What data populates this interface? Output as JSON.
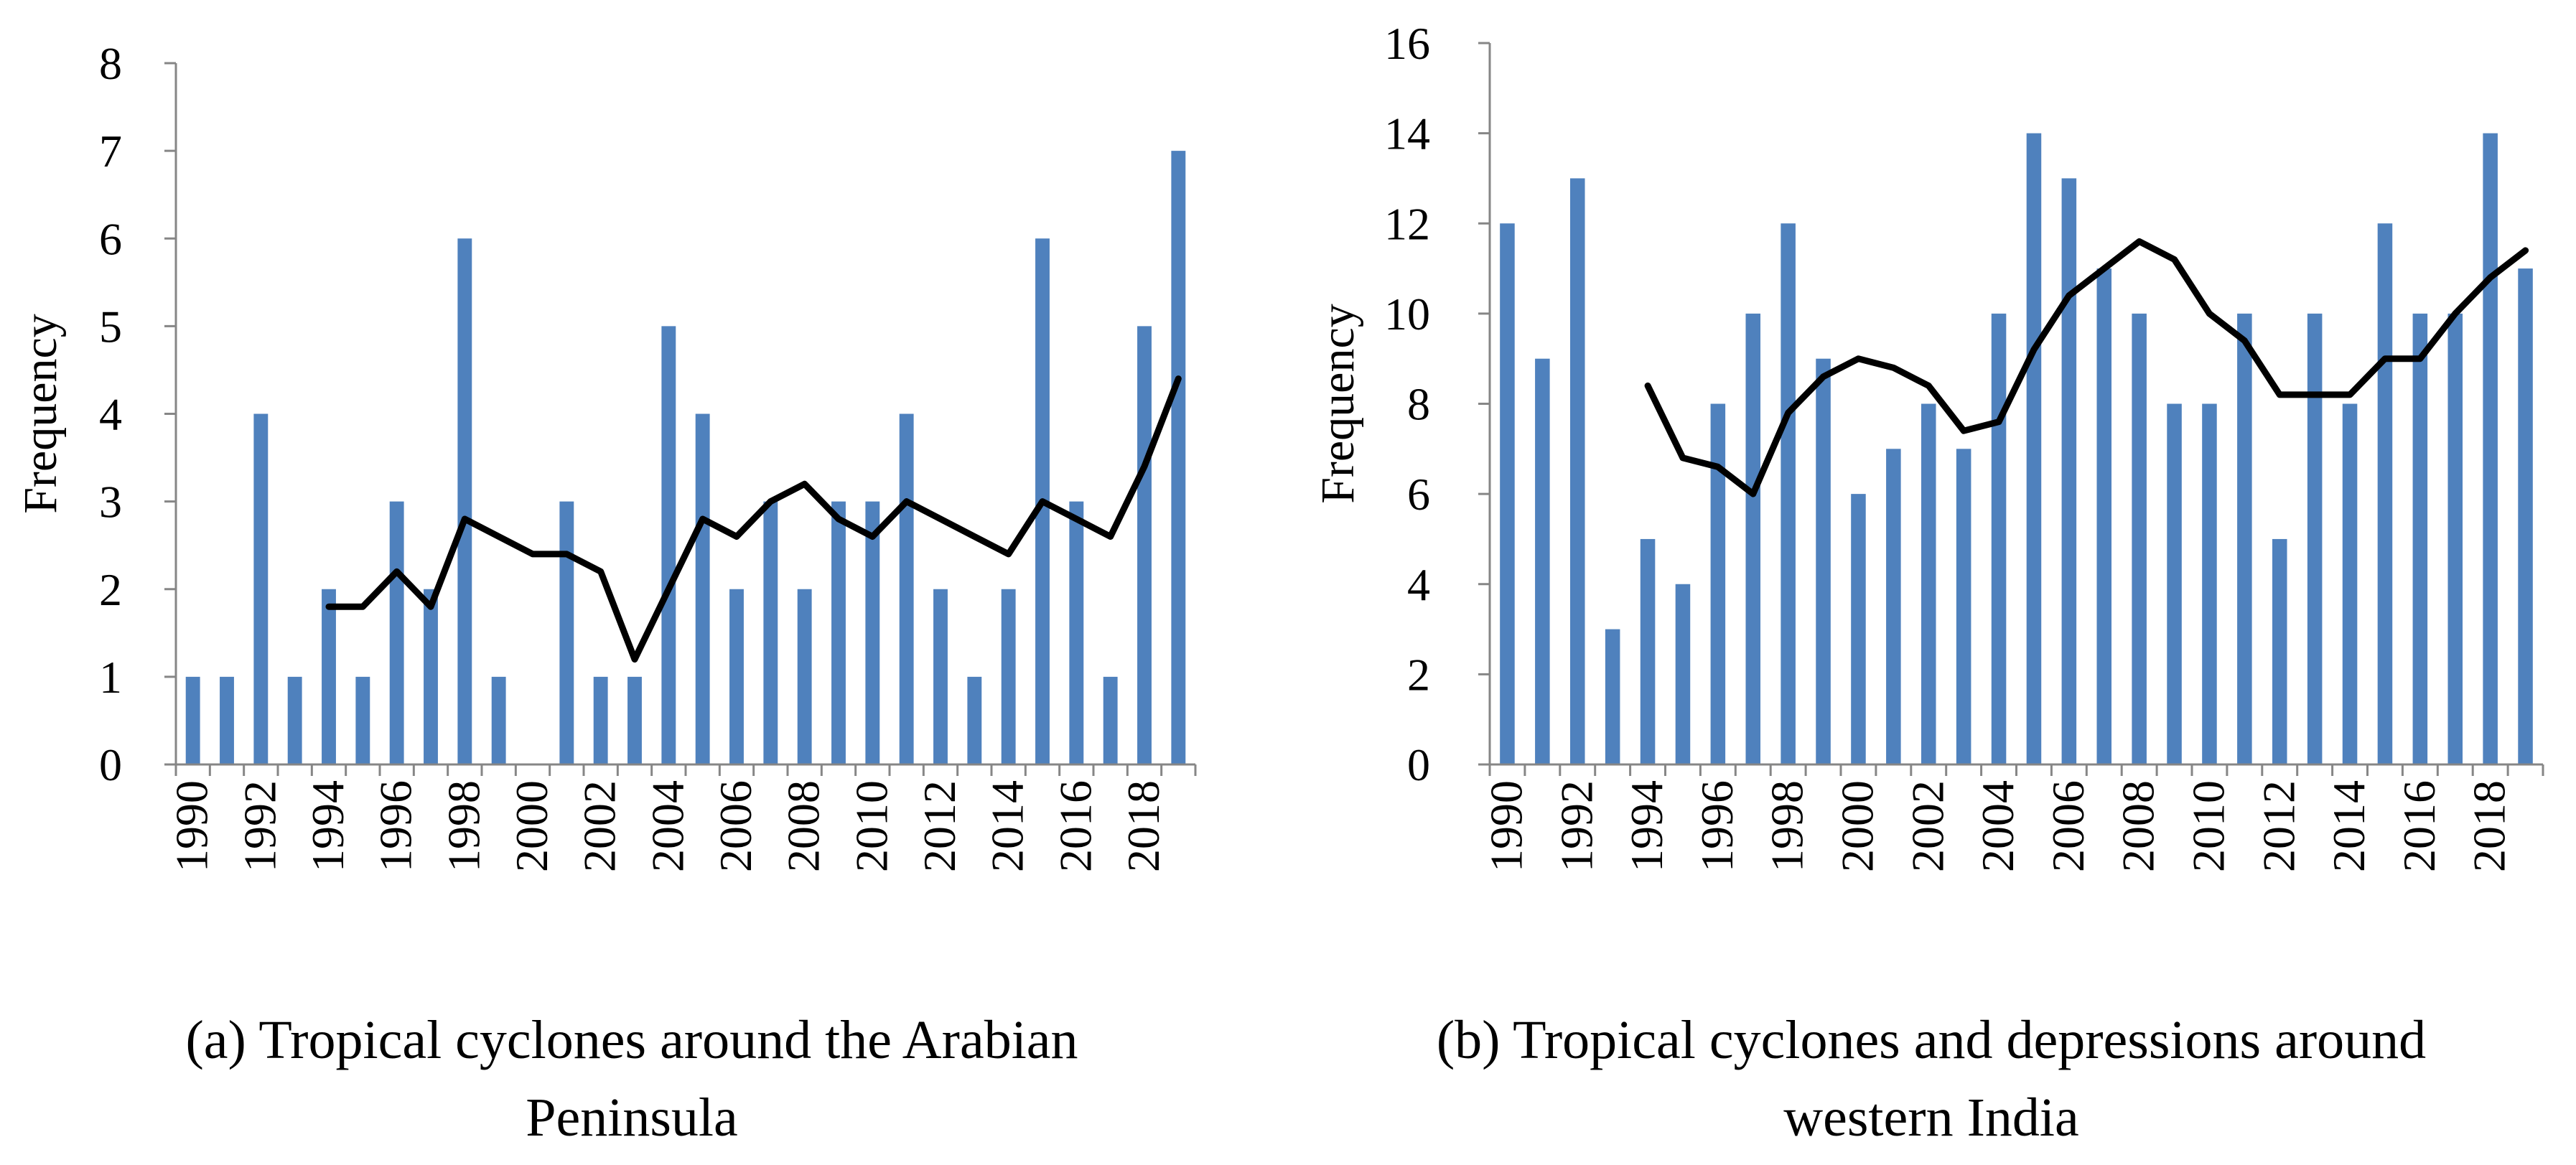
{
  "colors": {
    "bar": "#4f81bd",
    "line": "#000000",
    "axis": "#868686"
  },
  "chart_data": [
    {
      "type": "bar",
      "caption": "(a) Tropical cyclones around the Arabian Peninsula",
      "caption_lines": [
        "(a) Tropical cyclones around the Arabian",
        "Peninsula"
      ],
      "ylabel": "Frequency",
      "ylim": [
        0,
        8
      ],
      "yticks": [
        "0",
        "1",
        "2",
        "3",
        "4",
        "5",
        "6",
        "7",
        "8"
      ],
      "categories": [
        "1990",
        "1991",
        "1992",
        "1993",
        "1994",
        "1995",
        "1996",
        "1997",
        "1998",
        "1999",
        "2000",
        "2001",
        "2002",
        "2003",
        "2004",
        "2005",
        "2006",
        "2007",
        "2008",
        "2009",
        "2010",
        "2011",
        "2012",
        "2013",
        "2014",
        "2015",
        "2016",
        "2017",
        "2018",
        "2019"
      ],
      "xtick_labels": [
        "1990",
        "1992",
        "1994",
        "1996",
        "1998",
        "2000",
        "2002",
        "2004",
        "2006",
        "2008",
        "2010",
        "2012",
        "2014",
        "2016",
        "2018"
      ],
      "series": [
        {
          "type": "bar",
          "values": [
            1,
            1,
            4,
            1,
            2,
            1,
            3,
            2,
            6,
            1,
            0,
            3,
            1,
            1,
            5,
            4,
            2,
            3,
            2,
            3,
            3,
            4,
            2,
            1,
            2,
            6,
            3,
            1,
            5,
            7
          ]
        },
        {
          "type": "line",
          "values": [
            null,
            null,
            null,
            null,
            1.8,
            1.8,
            2.2,
            1.8,
            2.8,
            2.6,
            2.4,
            2.4,
            2.2,
            1.2,
            2.0,
            2.8,
            2.6,
            3.0,
            3.2,
            2.8,
            2.6,
            3.0,
            2.8,
            2.6,
            2.4,
            3.0,
            2.8,
            2.6,
            3.4,
            4.4
          ]
        }
      ]
    },
    {
      "type": "bar",
      "caption": "(b) Tropical cyclones and depressions around western India",
      "caption_lines": [
        "(b) Tropical cyclones and depressions around",
        "western India"
      ],
      "ylabel": "Frequency",
      "ylim": [
        0,
        16
      ],
      "yticks": [
        "0",
        "2",
        "4",
        "6",
        "8",
        "10",
        "12",
        "14",
        "16"
      ],
      "categories": [
        "1990",
        "1991",
        "1992",
        "1993",
        "1994",
        "1995",
        "1996",
        "1997",
        "1998",
        "1999",
        "2000",
        "2001",
        "2002",
        "2003",
        "2004",
        "2005",
        "2006",
        "2007",
        "2008",
        "2009",
        "2010",
        "2011",
        "2012",
        "2013",
        "2014",
        "2015",
        "2016",
        "2017",
        "2018",
        "2019"
      ],
      "xtick_labels": [
        "1990",
        "1992",
        "1994",
        "1996",
        "1998",
        "2000",
        "2002",
        "2004",
        "2006",
        "2008",
        "2010",
        "2012",
        "2014",
        "2016",
        "2018"
      ],
      "series": [
        {
          "type": "bar",
          "values": [
            12,
            9,
            13,
            3,
            5,
            4,
            8,
            10,
            12,
            9,
            6,
            7,
            8,
            7,
            10,
            14,
            13,
            11,
            10,
            8,
            8,
            10,
            5,
            10,
            8,
            12,
            10,
            10,
            14,
            11
          ]
        },
        {
          "type": "line",
          "values": [
            null,
            null,
            null,
            null,
            8.4,
            6.8,
            6.6,
            6.0,
            7.8,
            8.6,
            9.0,
            8.8,
            8.4,
            7.4,
            7.6,
            9.2,
            10.4,
            11.0,
            11.6,
            11.2,
            10.0,
            9.4,
            8.2,
            8.2,
            8.2,
            9.0,
            9.0,
            10.0,
            10.8,
            11.4
          ]
        }
      ]
    }
  ]
}
